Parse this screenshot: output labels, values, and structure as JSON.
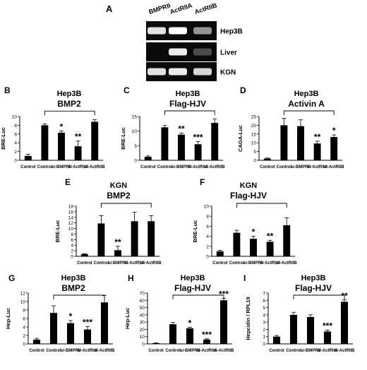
{
  "gel_panel": {
    "letter": "A",
    "lanes": [
      "BMPRII",
      "ActRIIA",
      "ActRIIB"
    ],
    "rows": [
      {
        "label": "Hep3B",
        "bands": [
          0.85,
          1.0,
          0.45
        ]
      },
      {
        "label": "Liver",
        "bands": [
          0.0,
          0.9,
          0.08
        ]
      },
      {
        "label": "KGN",
        "bands": [
          0.85,
          0.9,
          0.8
        ]
      }
    ]
  },
  "chart_data": [
    {
      "letter": "B",
      "type": "bar",
      "title": "Hep3B",
      "subtitle": "BMP2",
      "ylabel": "BRE-Luc",
      "ylim": [
        0,
        10
      ],
      "yticks": [
        0,
        2,
        4,
        6,
        8,
        10
      ],
      "categories": [
        "Control",
        "Control",
        "si-BMPRII",
        "si-ActRIIA",
        "si-ActRIIB"
      ],
      "values": [
        1.0,
        8.0,
        6.3,
        3.2,
        8.8
      ],
      "errors": [
        0.4,
        0.3,
        0.4,
        1.2,
        0.5
      ],
      "significance": [
        "",
        "",
        "*",
        "**",
        ""
      ],
      "bracket": [
        1,
        4
      ]
    },
    {
      "letter": "C",
      "type": "bar",
      "title": "Hep3B",
      "subtitle": "Flag-HJV",
      "ylabel": "BRE-Luc",
      "ylim": [
        0,
        15
      ],
      "yticks": [
        0,
        5,
        10,
        15
      ],
      "categories": [
        "Control",
        "Control",
        "si-BMPRII",
        "si-ActRIIA",
        "si-ActRIIB"
      ],
      "values": [
        1.2,
        11.3,
        8.8,
        5.5,
        12.8
      ],
      "errors": [
        0.3,
        0.6,
        0.5,
        0.9,
        1.4
      ],
      "significance": [
        "",
        "",
        "**",
        "***",
        ""
      ],
      "bracket": [
        1,
        4
      ]
    },
    {
      "letter": "D",
      "type": "bar",
      "title": "Hep3B",
      "subtitle": "Activin A",
      "ylabel": "CAGA-Luc",
      "ylim": [
        0,
        25
      ],
      "yticks": [
        0,
        5,
        10,
        15,
        20,
        25
      ],
      "categories": [
        "Control",
        "Control",
        "si-BMPRII",
        "si-ActRIIA",
        "si-ActRIIB"
      ],
      "values": [
        1.0,
        20.0,
        19.5,
        9.6,
        13.3
      ],
      "errors": [
        0.3,
        4.0,
        3.6,
        1.3,
        1.2
      ],
      "significance": [
        "",
        "",
        "",
        "**",
        "*"
      ],
      "bracket": [
        1,
        4
      ]
    },
    {
      "letter": "E",
      "type": "bar",
      "title": "KGN",
      "subtitle": "BMP2",
      "ylabel": "BRE-Luc",
      "ylim": [
        0,
        18
      ],
      "yticks": [
        0,
        2,
        4,
        6,
        8,
        10,
        12,
        14,
        16,
        18
      ],
      "categories": [
        "Control",
        "Control",
        "si-BMPRII",
        "si-ActRIIA",
        "si-ActRIIB"
      ],
      "values": [
        0.8,
        11.8,
        2.2,
        12.6,
        12.6
      ],
      "errors": [
        0.2,
        2.8,
        1.4,
        3.2,
        2.0
      ],
      "significance": [
        "",
        "",
        "**",
        "",
        ""
      ],
      "bracket": [
        1,
        4
      ]
    },
    {
      "letter": "F",
      "type": "bar",
      "title": "KGN",
      "subtitle": "Flag-HJV",
      "ylabel": "BRE-Luc",
      "ylim": [
        0,
        10
      ],
      "yticks": [
        0,
        2,
        4,
        6,
        8,
        10
      ],
      "categories": [
        "Control",
        "Control",
        "si-BMPRII",
        "si-ActRIIA",
        "si-ActRIIB"
      ],
      "values": [
        1.0,
        4.7,
        3.5,
        2.9,
        6.2
      ],
      "errors": [
        0.2,
        0.5,
        0.5,
        0.3,
        1.5
      ],
      "significance": [
        "",
        "",
        "*",
        "**",
        ""
      ],
      "bracket": [
        1,
        4
      ]
    },
    {
      "letter": "G",
      "type": "bar",
      "title": "Hep3B",
      "subtitle": "BMP2",
      "ylabel": "Hep-Luc",
      "ylim": [
        0,
        12
      ],
      "yticks": [
        0,
        2,
        4,
        6,
        8,
        10,
        12
      ],
      "categories": [
        "Control",
        "Control",
        "si-BMPRII",
        "si-ActRIIA",
        "si-ActRIIB"
      ],
      "values": [
        1.0,
        7.3,
        4.9,
        3.4,
        9.8
      ],
      "errors": [
        0.3,
        1.7,
        0.6,
        0.7,
        1.6
      ],
      "significance": [
        "",
        "",
        "*",
        "***",
        ""
      ],
      "bracket": [
        1,
        4
      ]
    },
    {
      "letter": "H",
      "type": "bar",
      "title": "Hep3B",
      "subtitle": "Flag-HJV",
      "ylabel": "Hep-Luc",
      "ylim": [
        0,
        70
      ],
      "yticks": [
        0,
        10,
        20,
        30,
        40,
        50,
        60,
        70
      ],
      "categories": [
        "Control",
        "Control",
        "si-BMPRII",
        "si-ActRIIA",
        "si-ActRIIB"
      ],
      "values": [
        1.0,
        27.0,
        21.5,
        6.0,
        60.0
      ],
      "errors": [
        0.3,
        2.5,
        1.5,
        1.0,
        2.5
      ],
      "significance": [
        "",
        "",
        "*",
        "***",
        "***"
      ],
      "bracket": [
        1,
        4
      ]
    },
    {
      "letter": "I",
      "type": "bar",
      "title": "Hep3B",
      "subtitle": "Flag-HJV",
      "ylabel": "Hepcidin / RPL19",
      "ylim": [
        0,
        7
      ],
      "yticks": [
        0,
        1,
        2,
        3,
        4,
        5,
        6,
        7
      ],
      "categories": [
        "Control",
        "Control",
        "si-BMPRII",
        "si-ActRIIA",
        "si-ActRIIB"
      ],
      "values": [
        1.0,
        4.0,
        3.7,
        1.7,
        5.8
      ],
      "errors": [
        0.15,
        0.35,
        0.3,
        0.2,
        0.25
      ],
      "significance": [
        "",
        "",
        "",
        "***",
        "**"
      ],
      "bracket": [
        1,
        4
      ]
    }
  ]
}
